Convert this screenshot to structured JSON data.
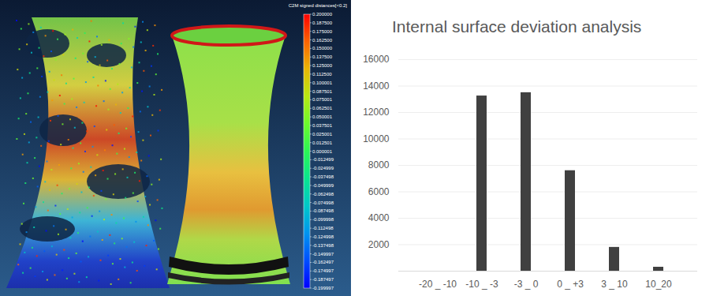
{
  "chart_data": {
    "type": "bar",
    "title": "Internal surface deviation analysis",
    "categories": [
      "-20 _ -10",
      "-10 _ -3",
      "-3 _ 0",
      "0 _ +3",
      "3 _ 10",
      "10_20"
    ],
    "values": [
      0,
      13250,
      13500,
      7600,
      1800,
      300
    ],
    "color": "#404040",
    "ylim": [
      0,
      16000
    ],
    "yticks": [
      2000,
      4000,
      6000,
      8000,
      10000,
      12000,
      14000,
      16000
    ],
    "grid": true
  },
  "scan_image": {
    "colorbar_title": "C2M signed distances[<0.2]",
    "colorbar_range": [
      -0.199997,
      0.2
    ],
    "colorbar_ticks": [
      {
        "value": 0.2,
        "label": "0.200000"
      },
      {
        "value": 0.1875,
        "label": "0.187500"
      },
      {
        "value": 0.175,
        "label": "0.175000"
      },
      {
        "value": 0.1625,
        "label": "0.162500"
      },
      {
        "value": 0.15,
        "label": "0.150000"
      },
      {
        "value": 0.1375,
        "label": "0.137500"
      },
      {
        "value": 0.125,
        "label": "0.125000"
      },
      {
        "value": 0.1125,
        "label": "0.112500"
      },
      {
        "value": 0.100001,
        "label": "0.100001"
      },
      {
        "value": 0.087501,
        "label": "0.087501"
      },
      {
        "value": 0.075001,
        "label": "0.075001"
      },
      {
        "value": 0.062501,
        "label": "0.062501"
      },
      {
        "value": 0.050001,
        "label": "0.050001"
      },
      {
        "value": 0.037501,
        "label": "0.037501"
      },
      {
        "value": 0.025001,
        "label": "0.025001"
      },
      {
        "value": 0.012501,
        "label": "0.012501"
      },
      {
        "value": 1e-06,
        "label": "0.000001"
      },
      {
        "value": -0.012499,
        "label": "-0.012499"
      },
      {
        "value": -0.024999,
        "label": "-0.024999"
      },
      {
        "value": -0.037498,
        "label": "-0.037498"
      },
      {
        "value": -0.049999,
        "label": "-0.049999"
      },
      {
        "value": -0.062498,
        "label": "-0.062498"
      },
      {
        "value": -0.074998,
        "label": "-0.074998"
      },
      {
        "value": -0.087498,
        "label": "-0.087498"
      },
      {
        "value": -0.099998,
        "label": "-0.099998"
      },
      {
        "value": -0.112498,
        "label": "-0.112498"
      },
      {
        "value": -0.124998,
        "label": "-0.124998"
      },
      {
        "value": -0.137498,
        "label": "-0.137498"
      },
      {
        "value": -0.149997,
        "label": "-0.149997"
      },
      {
        "value": -0.162497,
        "label": "-0.162497"
      },
      {
        "value": -0.174997,
        "label": "-0.174997"
      },
      {
        "value": -0.187497,
        "label": "-0.187497"
      },
      {
        "value": -0.199997,
        "label": "-0.199997"
      }
    ]
  }
}
